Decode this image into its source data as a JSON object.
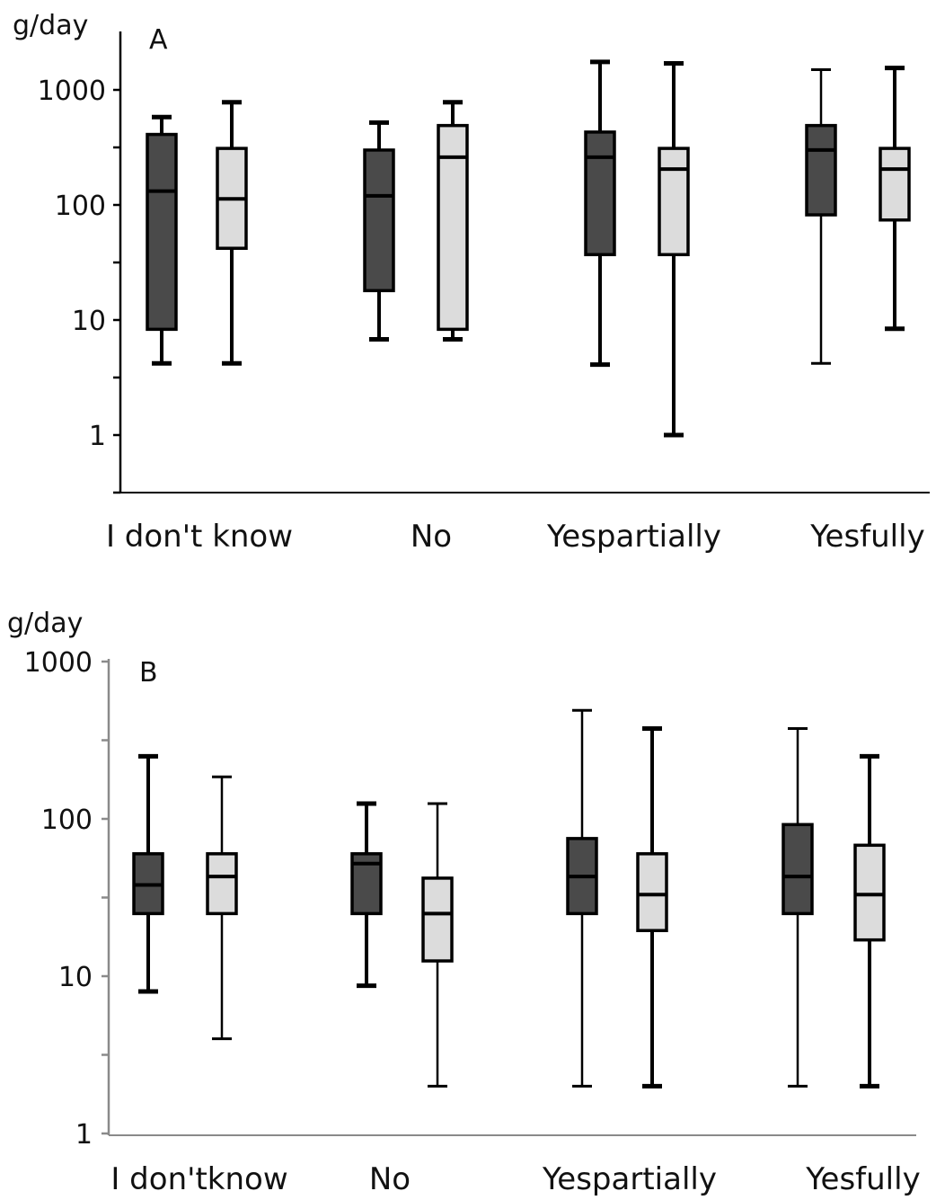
{
  "chart_data": [
    {
      "type": "box",
      "panel_label": "A",
      "ylabel": "g/day",
      "yscale": "log",
      "ylim": [
        0.6,
        3000
      ],
      "ytick_labels": [
        "1",
        "10",
        "100",
        "1000"
      ],
      "ytick_values": [
        1,
        10,
        100,
        1000
      ],
      "categories": [
        "I don't know",
        "No",
        "Yespartially",
        "Yesfully"
      ],
      "colors": {
        "dark": "#4a4a4a",
        "light": "#dcdcdc",
        "stroke": "#000000"
      },
      "boxes": [
        {
          "category": "I don't know",
          "fill": "dark",
          "min": 4.2,
          "q1": 8.3,
          "median": 132,
          "q3": 410,
          "max": 580
        },
        {
          "category": "I don't know",
          "fill": "light",
          "min": 4.2,
          "q1": 42,
          "median": 113,
          "q3": 310,
          "max": 780
        },
        {
          "category": "No",
          "fill": "dark",
          "min": 6.8,
          "q1": 18,
          "median": 120,
          "q3": 300,
          "max": 520
        },
        {
          "category": "No",
          "fill": "light",
          "min": 6.8,
          "q1": 8.3,
          "median": 260,
          "q3": 490,
          "max": 780
        },
        {
          "category": "Yespartially",
          "fill": "dark",
          "min": 4.1,
          "q1": 37,
          "median": 260,
          "q3": 430,
          "max": 1750
        },
        {
          "category": "Yespartially",
          "fill": "light",
          "min": 1,
          "q1": 37,
          "median": 205,
          "q3": 310,
          "max": 1700
        },
        {
          "category": "Yesfully",
          "fill": "dark",
          "min": 4.2,
          "q1": 82,
          "median": 300,
          "q3": 490,
          "max": 1500
        },
        {
          "category": "Yesfully",
          "fill": "light",
          "min": 8.4,
          "q1": 74,
          "median": 205,
          "q3": 310,
          "max": 1550
        }
      ]
    },
    {
      "type": "box",
      "panel_label": "B",
      "ylabel": "g/day",
      "yscale": "log",
      "ylim": [
        1,
        1000
      ],
      "ytick_labels": [
        "1",
        "10",
        "100",
        "1000"
      ],
      "ytick_values": [
        1,
        10,
        100,
        1000
      ],
      "categories": [
        "I don'tknow",
        "No",
        "Yespartially",
        "Yesfully"
      ],
      "colors": {
        "dark": "#4a4a4a",
        "light": "#dcdcdc",
        "stroke": "#000000"
      },
      "boxes": [
        {
          "category": "I don'tknow",
          "fill": "dark",
          "min": 8,
          "q1": 25,
          "median": 38,
          "q3": 60,
          "max": 250
        },
        {
          "category": "I don'tknow",
          "fill": "light",
          "min": 4,
          "q1": 25,
          "median": 43,
          "q3": 60,
          "max": 185
        },
        {
          "category": "No",
          "fill": "dark",
          "min": 8.7,
          "q1": 25,
          "median": 52,
          "q3": 60,
          "max": 125
        },
        {
          "category": "No",
          "fill": "light",
          "min": 2,
          "q1": 12.5,
          "median": 25,
          "q3": 42,
          "max": 125
        },
        {
          "category": "Yespartially",
          "fill": "dark",
          "min": 2,
          "q1": 25,
          "median": 43,
          "q3": 75,
          "max": 490
        },
        {
          "category": "Yespartially",
          "fill": "light",
          "min": 2,
          "q1": 19.5,
          "median": 33,
          "q3": 60,
          "max": 375
        },
        {
          "category": "Yesfully",
          "fill": "dark",
          "min": 2,
          "q1": 25,
          "median": 43,
          "q3": 92,
          "max": 375
        },
        {
          "category": "Yesfully",
          "fill": "light",
          "min": 2,
          "q1": 17,
          "median": 33,
          "q3": 68,
          "max": 250
        }
      ]
    }
  ]
}
